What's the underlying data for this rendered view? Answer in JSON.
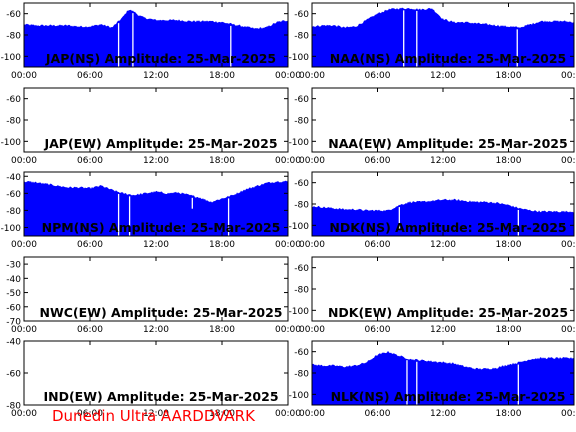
{
  "figure": {
    "footer": "Dunedin Ultra AARDDVARK",
    "fill_color": "#0000ff",
    "frame_color": "#000000",
    "text_color": "#000000",
    "footer_color": "#ff0000"
  },
  "chart_data": [
    {
      "type": "area",
      "title": "JAP(NS) Amplitude: 25-Mar-2025",
      "ylim": [
        -110,
        -50
      ],
      "yticks": [
        -60,
        -80,
        -100
      ],
      "xticks": [
        "00:00",
        "06:00",
        "12:00",
        "18:00",
        "00:00"
      ],
      "x": [
        0,
        1,
        2,
        3,
        4,
        5,
        6,
        7,
        8,
        9,
        9.5,
        10,
        10.5,
        11,
        12,
        13,
        14,
        15,
        16,
        17,
        18,
        19,
        20,
        21,
        22,
        23,
        24
      ],
      "values": [
        -70,
        -71,
        -71,
        -71,
        -71,
        -72,
        -72,
        -70,
        -73,
        -63,
        -56,
        -58,
        -62,
        -64,
        -66,
        -66,
        -66,
        -67,
        -67,
        -67,
        -68,
        -70,
        -72,
        -74,
        -73,
        -68,
        -66
      ],
      "dips": [
        {
          "x": 8.6,
          "to": -110
        },
        {
          "x": 9.9,
          "to": -110
        },
        {
          "x": 18.8,
          "to": -110
        }
      ]
    },
    {
      "type": "area",
      "title": "NAA(NS) Amplitude: 25-Mar-2025",
      "ylim": [
        -110,
        -50
      ],
      "yticks": [
        -60,
        -80,
        -100
      ],
      "xticks": [
        "00:00",
        "06:00",
        "12:00",
        "18:00",
        "00:00"
      ],
      "x": [
        0,
        1,
        2,
        3,
        4,
        5,
        6,
        7,
        8,
        9,
        10,
        11,
        12,
        13,
        14,
        15,
        16,
        17,
        18,
        19,
        20,
        21,
        22,
        23,
        24
      ],
      "values": [
        -72,
        -71,
        -71,
        -73,
        -72,
        -66,
        -60,
        -56,
        -55,
        -55,
        -56,
        -55,
        -65,
        -68,
        -68,
        -69,
        -70,
        -71,
        -72,
        -73,
        -70,
        -67,
        -67,
        -67,
        -68
      ],
      "dips": [
        {
          "x": 8.4,
          "to": -110
        },
        {
          "x": 9.6,
          "to": -110
        },
        {
          "x": 18.8,
          "to": -110
        }
      ]
    },
    {
      "type": "area",
      "title": "JAP(EW) Amplitude: 25-Mar-2025",
      "ylim": [
        -110,
        -50
      ],
      "yticks": [
        -60,
        -80,
        -100
      ],
      "xticks": [
        "00:00",
        "06:00",
        "12:00",
        "18:00",
        "00:00"
      ],
      "x": [],
      "values": [],
      "dips": []
    },
    {
      "type": "area",
      "title": "NAA(EW) Amplitude: 25-Mar-2025",
      "ylim": [
        -110,
        -50
      ],
      "yticks": [
        -60,
        -80,
        -100
      ],
      "xticks": [
        "00:00",
        "06:00",
        "12:00",
        "18:00",
        "00:00"
      ],
      "x": [],
      "values": [],
      "dips": []
    },
    {
      "type": "area",
      "title": "NPM(NS) Amplitude: 25-Mar-2025",
      "ylim": [
        -110,
        -35
      ],
      "yticks": [
        -40,
        -60,
        -80,
        -100
      ],
      "xticks": [
        "00:00",
        "06:00",
        "12:00",
        "18:00",
        "00:00"
      ],
      "x": [
        0,
        1,
        2,
        3,
        4,
        5,
        6,
        7,
        8,
        9,
        10,
        11,
        12,
        13,
        14,
        15,
        16,
        17,
        18,
        19,
        20,
        21,
        22,
        23,
        24
      ],
      "values": [
        -46,
        -47,
        -49,
        -51,
        -53,
        -53,
        -54,
        -51,
        -56,
        -60,
        -62,
        -60,
        -58,
        -60,
        -59,
        -62,
        -65,
        -70,
        -66,
        -62,
        -56,
        -52,
        -48,
        -46,
        -46
      ],
      "dips": [
        {
          "x": 8.6,
          "to": -110
        },
        {
          "x": 9.6,
          "to": -110
        },
        {
          "x": 15.3,
          "to": -78
        },
        {
          "x": 18.6,
          "to": -110
        }
      ]
    },
    {
      "type": "area",
      "title": "NDK(NS) Amplitude: 25-Mar-2025",
      "ylim": [
        -110,
        -50
      ],
      "yticks": [
        -60,
        -80,
        -100
      ],
      "xticks": [
        "00:00",
        "06:00",
        "12:00",
        "18:00",
        "00:00"
      ],
      "x": [
        0,
        1,
        2,
        3,
        4,
        5,
        6,
        7,
        8,
        9,
        10,
        11,
        12,
        13,
        14,
        15,
        16,
        17,
        18,
        19,
        20,
        21,
        22,
        23,
        24
      ],
      "values": [
        -82,
        -83,
        -84,
        -85,
        -85,
        -86,
        -86,
        -86,
        -81,
        -78,
        -78,
        -77,
        -76,
        -76,
        -77,
        -78,
        -78,
        -79,
        -81,
        -84,
        -86,
        -87,
        -87,
        -87,
        -87
      ],
      "dips": [
        {
          "x": 8.0,
          "to": -104
        },
        {
          "x": 18.9,
          "to": -110
        }
      ]
    },
    {
      "type": "area",
      "title": "NWC(EW) Amplitude: 25-Mar-2025",
      "ylim": [
        -70,
        -25
      ],
      "yticks": [
        -30,
        -40,
        -50,
        -60,
        -70
      ],
      "xticks": [
        "00:00",
        "06:00",
        "12:00",
        "18:00",
        "00:00"
      ],
      "x": [],
      "values": [],
      "dips": []
    },
    {
      "type": "area",
      "title": "NDK(EW) Amplitude: 25-Mar-2025",
      "ylim": [
        -110,
        -50
      ],
      "yticks": [
        -60,
        -80,
        -100
      ],
      "xticks": [
        "00:00",
        "06:00",
        "12:00",
        "18:00",
        "00:00"
      ],
      "x": [],
      "values": [],
      "dips": []
    },
    {
      "type": "area",
      "title": "IND(EW) Amplitude: 25-Mar-2025",
      "ylim": [
        -80,
        -40
      ],
      "yticks": [
        -40,
        -60,
        -80
      ],
      "xticks": [
        "00:00",
        "06:00",
        "12:00",
        "18:00",
        "00:00"
      ],
      "x": [],
      "values": [],
      "dips": []
    },
    {
      "type": "area",
      "title": "NLK(NS) Amplitude: 25-Mar-2025",
      "ylim": [
        -110,
        -50
      ],
      "yticks": [
        -60,
        -80,
        -100
      ],
      "xticks": [
        "00:00",
        "06:00",
        "12:00",
        "18:00",
        "00:00"
      ],
      "x": [
        0,
        1,
        2,
        3,
        4,
        5,
        6,
        7,
        8,
        9,
        10,
        11,
        12,
        13,
        14,
        15,
        16,
        17,
        18,
        19,
        20,
        21,
        22,
        23,
        24
      ],
      "values": [
        -72,
        -73,
        -73,
        -74,
        -73,
        -70,
        -63,
        -60,
        -64,
        -67,
        -68,
        -69,
        -70,
        -71,
        -74,
        -76,
        -76,
        -75,
        -72,
        -70,
        -67,
        -66,
        -66,
        -66,
        -66
      ],
      "dips": [
        {
          "x": 8.7,
          "to": -110
        },
        {
          "x": 9.6,
          "to": -110
        },
        {
          "x": 18.9,
          "to": -110
        }
      ]
    }
  ]
}
